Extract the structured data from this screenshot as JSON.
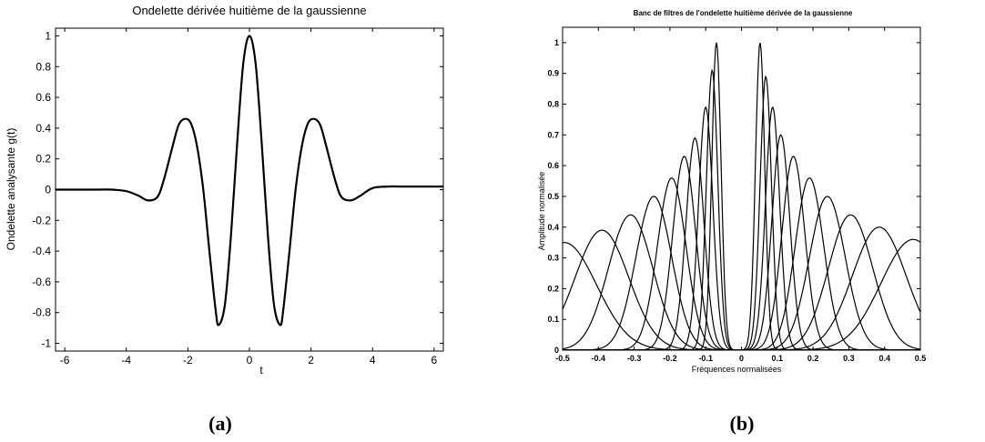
{
  "chart_data": [
    {
      "type": "line",
      "title": "Ondelette dérivée huitième de la gaussienne",
      "xlabel": "t",
      "ylabel": "Ondelette analysante g(t)",
      "xlim": [
        -6.3,
        6.3
      ],
      "ylim": [
        -1.05,
        1.05
      ],
      "xticks": [
        -6,
        -4,
        -2,
        0,
        2,
        4,
        6
      ],
      "yticks": [
        -1,
        -0.8,
        -0.6,
        -0.4,
        -0.2,
        0,
        0.2,
        0.4,
        0.6,
        0.8,
        1
      ],
      "grid": false,
      "legend": "none",
      "color": "#000000",
      "x": [
        -6.3,
        -5,
        -4.5,
        -4,
        -3.6,
        -3.3,
        -3,
        -2.8,
        -2.5,
        -2.3,
        -2.1,
        -1.9,
        -1.7,
        -1.5,
        -1.3,
        -1.1,
        -1.0,
        -0.8,
        -0.6,
        -0.4,
        -0.2,
        0,
        0.2,
        0.4,
        0.6,
        0.8,
        1.0,
        1.1,
        1.3,
        1.5,
        1.7,
        1.9,
        2.1,
        2.3,
        2.5,
        2.8,
        3,
        3.3,
        3.6,
        4,
        4.5,
        5,
        6.3
      ],
      "y": [
        0,
        0,
        0,
        -0.01,
        -0.04,
        -0.07,
        -0.05,
        0.05,
        0.28,
        0.42,
        0.46,
        0.43,
        0.28,
        0.0,
        -0.4,
        -0.78,
        -0.88,
        -0.75,
        -0.3,
        0.3,
        0.82,
        1.0,
        0.82,
        0.3,
        -0.3,
        -0.75,
        -0.88,
        -0.78,
        -0.4,
        0.0,
        0.28,
        0.43,
        0.46,
        0.42,
        0.28,
        0.05,
        -0.05,
        -0.07,
        -0.04,
        0.01,
        0.02,
        0.02,
        0.02
      ]
    },
    {
      "type": "line",
      "title": "Banc de filtres de l'ondelette huitième dérivée de la gaussienne",
      "xlabel": "Fréquences normalisées",
      "ylabel": "Amplitude normalisée",
      "xlim": [
        -0.5,
        0.5
      ],
      "ylim": [
        0,
        1.05
      ],
      "xticks": [
        -0.5,
        -0.4,
        -0.3,
        -0.2,
        -0.1,
        0,
        0.1,
        0.2,
        0.3,
        0.4,
        0.5
      ],
      "yticks": [
        0,
        0.1,
        0.2,
        0.3,
        0.4,
        0.5,
        0.6,
        0.7,
        0.8,
        0.9,
        1
      ],
      "grid": false,
      "legend": "none",
      "color": "#000000",
      "filters": [
        {
          "center": 0.052,
          "peak": 1.0,
          "width": 0.013
        },
        {
          "center": 0.068,
          "peak": 0.89,
          "width": 0.016
        },
        {
          "center": 0.087,
          "peak": 0.79,
          "width": 0.02
        },
        {
          "center": 0.11,
          "peak": 0.7,
          "width": 0.025
        },
        {
          "center": 0.145,
          "peak": 0.63,
          "width": 0.032
        },
        {
          "center": 0.19,
          "peak": 0.56,
          "width": 0.04
        },
        {
          "center": 0.24,
          "peak": 0.5,
          "width": 0.05
        },
        {
          "center": 0.305,
          "peak": 0.44,
          "width": 0.062
        },
        {
          "center": 0.385,
          "peak": 0.4,
          "width": 0.075
        },
        {
          "center": 0.48,
          "peak": 0.36,
          "width": 0.09
        },
        {
          "center": -0.07,
          "peak": 1.0,
          "width": 0.013
        },
        {
          "center": -0.082,
          "peak": 0.91,
          "width": 0.016
        },
        {
          "center": -0.1,
          "peak": 0.79,
          "width": 0.02
        },
        {
          "center": -0.13,
          "peak": 0.69,
          "width": 0.025
        },
        {
          "center": -0.16,
          "peak": 0.63,
          "width": 0.032
        },
        {
          "center": -0.195,
          "peak": 0.56,
          "width": 0.04
        },
        {
          "center": -0.245,
          "peak": 0.5,
          "width": 0.05
        },
        {
          "center": -0.31,
          "peak": 0.44,
          "width": 0.062
        },
        {
          "center": -0.39,
          "peak": 0.39,
          "width": 0.075
        },
        {
          "center": -0.495,
          "peak": 0.35,
          "width": 0.09
        }
      ]
    }
  ],
  "captions": [
    "(a)",
    "(b)"
  ]
}
